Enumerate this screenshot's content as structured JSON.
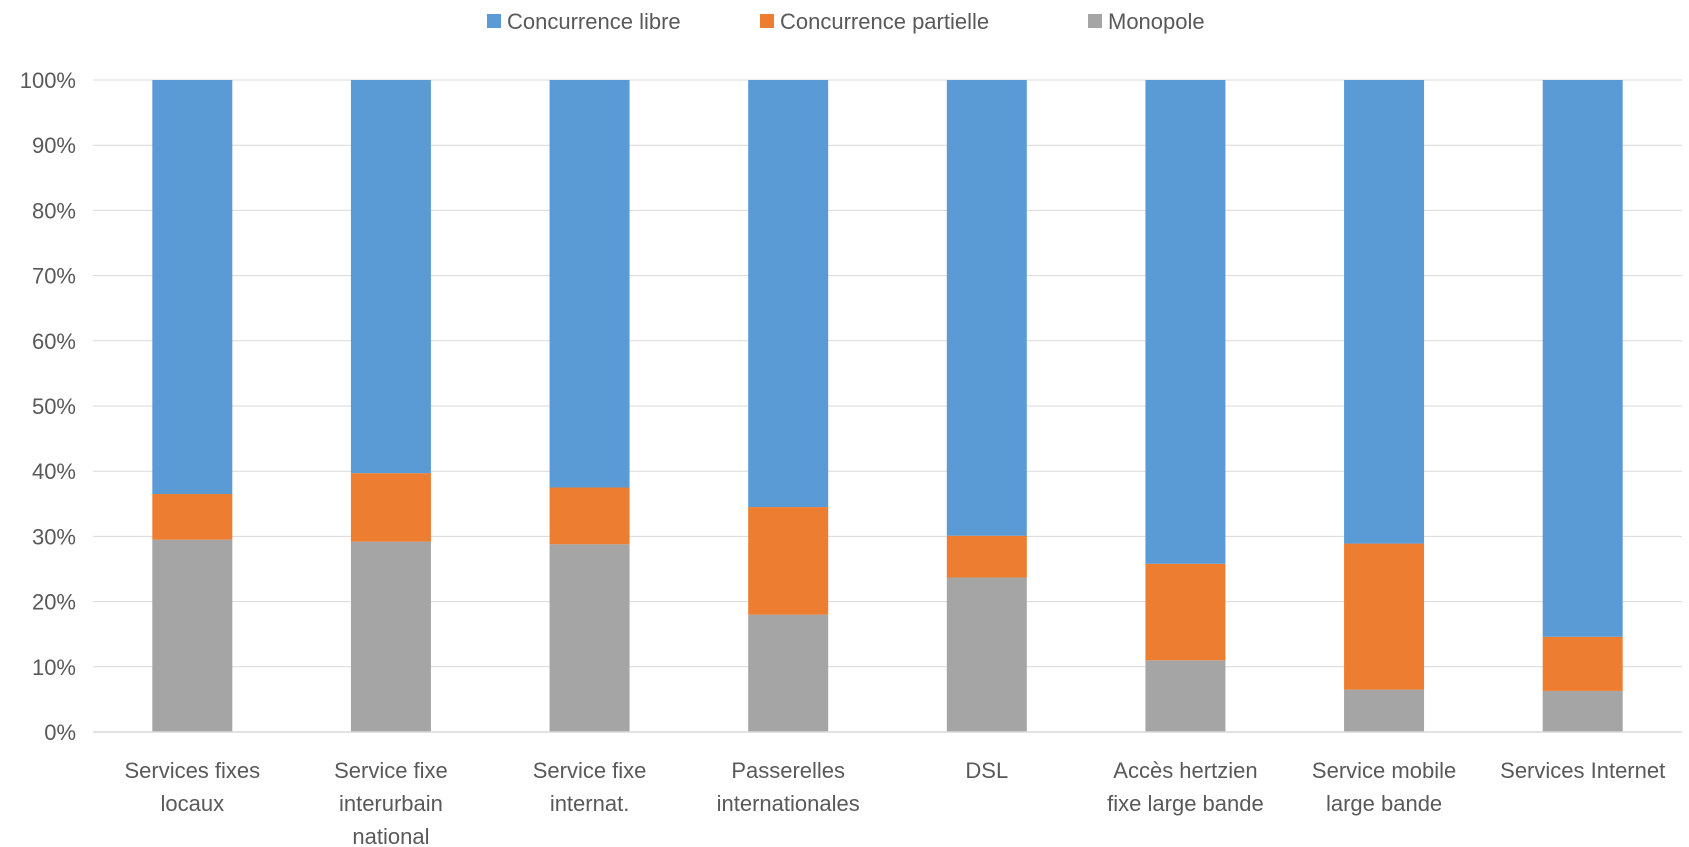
{
  "chart_data": {
    "type": "bar",
    "stacked": true,
    "percent": true,
    "title": "",
    "xlabel": "",
    "ylabel": "",
    "ylim": [
      0,
      100
    ],
    "y_ticks": [
      "0%",
      "10%",
      "20%",
      "30%",
      "40%",
      "50%",
      "60%",
      "70%",
      "80%",
      "90%",
      "100%"
    ],
    "grid": true,
    "legend_position": "top",
    "categories": [
      [
        "Services fixes",
        "locaux"
      ],
      [
        "Service fixe",
        "interurbain",
        "national"
      ],
      [
        "Service fixe",
        "internat."
      ],
      [
        "Passerelles",
        "internationales"
      ],
      [
        "DSL"
      ],
      [
        "Accès hertzien",
        "fixe large bande"
      ],
      [
        "Service mobile",
        "large bande"
      ],
      [
        "Services Internet"
      ]
    ],
    "series": [
      {
        "name": "Monopole",
        "color": "#a5a5a5",
        "values": [
          29.5,
          29.2,
          28.8,
          18.0,
          23.7,
          11.0,
          6.5,
          6.3
        ]
      },
      {
        "name": "Concurrence partielle",
        "color": "#ed7d31",
        "values": [
          7.0,
          10.5,
          8.7,
          16.5,
          6.4,
          14.8,
          22.4,
          8.3
        ]
      },
      {
        "name": "Concurrence libre",
        "color": "#5b9bd5",
        "values": [
          63.5,
          60.3,
          62.5,
          65.5,
          69.9,
          74.2,
          71.1,
          85.4
        ]
      }
    ],
    "legend_order": [
      "Concurrence libre",
      "Concurrence partielle",
      "Monopole"
    ]
  }
}
